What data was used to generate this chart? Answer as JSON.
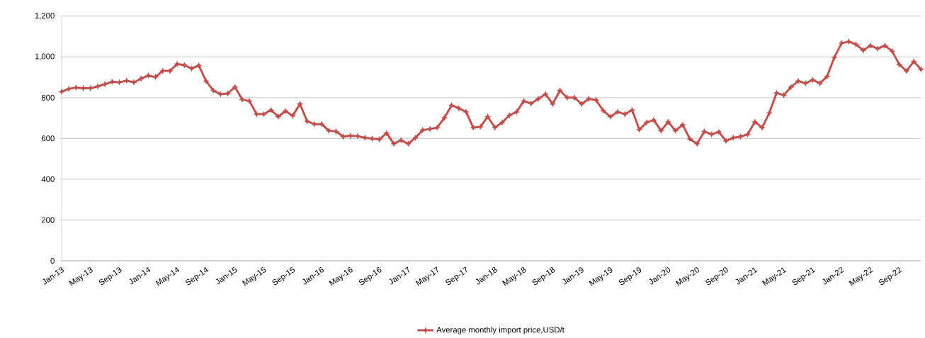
{
  "chart_data": {
    "type": "line",
    "categories": [
      "Jan-13",
      null,
      null,
      null,
      "May-13",
      null,
      null,
      null,
      "Sep-13",
      null,
      null,
      null,
      "Jan-14",
      null,
      null,
      null,
      "May-14",
      null,
      null,
      null,
      "Sep-14",
      null,
      null,
      null,
      "Jan-15",
      null,
      null,
      null,
      "May-15",
      null,
      null,
      null,
      "Sep-15",
      null,
      null,
      null,
      "Jan-16",
      null,
      null,
      null,
      "May-16",
      null,
      null,
      null,
      "Sep-16",
      null,
      null,
      null,
      "Jan-17",
      null,
      null,
      null,
      "May-17",
      null,
      null,
      null,
      "Sep-17",
      null,
      null,
      null,
      "Jan-18",
      null,
      null,
      null,
      "May-18",
      null,
      null,
      null,
      "Sep-18",
      null,
      null,
      null,
      "Jan-19",
      null,
      null,
      null,
      "May-19",
      null,
      null,
      null,
      "Sep-19",
      null,
      null,
      null,
      "Jan-20",
      null,
      null,
      null,
      "May-20",
      null,
      null,
      null,
      "Sep-20",
      null,
      null,
      null,
      "Jan-21",
      null,
      null,
      null,
      "May-21",
      null,
      null,
      null,
      "Sep-21",
      null,
      null,
      null,
      "Jan-22",
      null,
      null,
      null,
      "May-22",
      null,
      null,
      null,
      "Sep-22",
      null,
      null,
      null
    ],
    "series": [
      {
        "name": "Average monthly import price,USD/t",
        "color": "#c0504d",
        "values": [
          829,
          843,
          849,
          846,
          846,
          855,
          866,
          878,
          875,
          883,
          875,
          893,
          908,
          901,
          931,
          931,
          965,
          959,
          943,
          958,
          881,
          835,
          817,
          820,
          852,
          791,
          783,
          719,
          719,
          739,
          707,
          734,
          711,
          769,
          684,
          670,
          670,
          638,
          634,
          609,
          613,
          611,
          603,
          599,
          595,
          626,
          574,
          591,
          574,
          603,
          641,
          646,
          653,
          701,
          762,
          748,
          730,
          653,
          657,
          707,
          653,
          678,
          713,
          730,
          783,
          771,
          794,
          817,
          769,
          835,
          800,
          800,
          769,
          794,
          788,
          736,
          707,
          730,
          719,
          739,
          643,
          678,
          690,
          638,
          681,
          638,
          667,
          597,
          574,
          634,
          620,
          632,
          588,
          603,
          609,
          620,
          681,
          653,
          725,
          823,
          812,
          852,
          881,
          870,
          887,
          870,
          904,
          997,
          1067,
          1075,
          1061,
          1032,
          1055,
          1040,
          1055,
          1028,
          962,
          931,
          977,
          939
        ]
      }
    ],
    "ylim": [
      0,
      1200
    ],
    "yticks": [
      0,
      200,
      400,
      600,
      800,
      {
        "value": 1000,
        "label": "1,000"
      },
      {
        "value": 1200,
        "label": "1,200"
      }
    ],
    "grid": "y",
    "legend": "bottom",
    "marker": "star",
    "line_style": "solid"
  }
}
